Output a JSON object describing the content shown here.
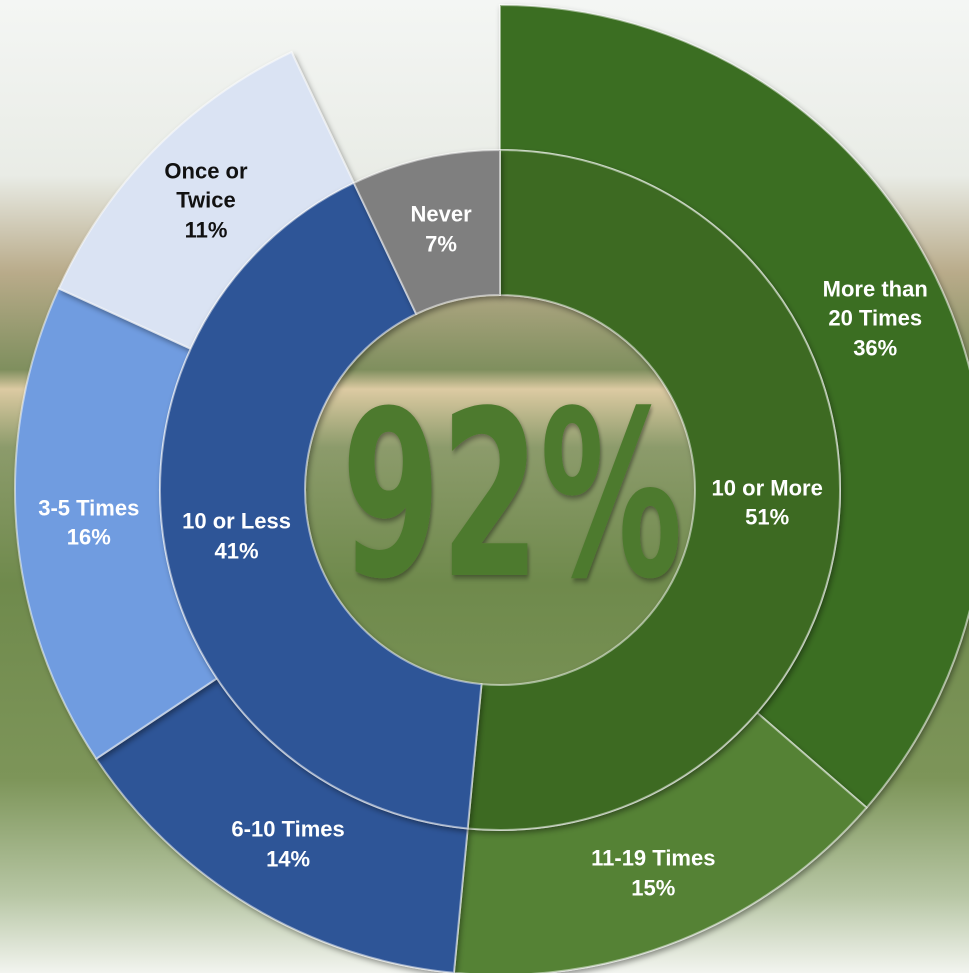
{
  "chart_data": {
    "type": "sunburst",
    "center_label": "92%",
    "center_color": "#4e7a2e",
    "inner": {
      "categories": [
        "10 or More",
        "10 or Less",
        "Never"
      ],
      "values": [
        51,
        41,
        7
      ],
      "value_labels": [
        "51%",
        "41%",
        "7%"
      ],
      "colors": [
        "#3d6b22",
        "#2f5597",
        "#7f7f7f"
      ]
    },
    "outer": {
      "categories": [
        "More than 20 Times",
        "11-19 Times",
        "6-10 Times",
        "3-5 Times",
        "Once or Twice"
      ],
      "values": [
        36,
        15,
        14,
        16,
        11
      ],
      "value_labels": [
        "36%",
        "15%",
        "14%",
        "16%",
        "11%"
      ],
      "colors": [
        "#3b6e20",
        "#548235",
        "#2f5597",
        "#6f9ce0",
        "#dae3f3"
      ]
    }
  }
}
